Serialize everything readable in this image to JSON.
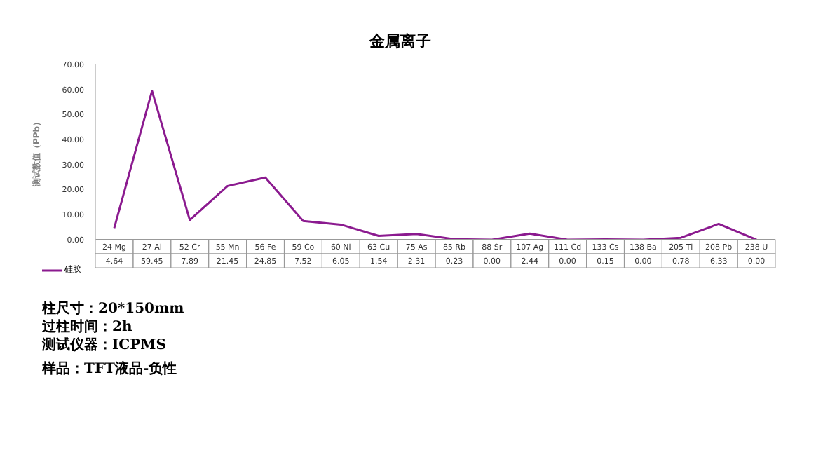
{
  "chart_data": {
    "type": "line",
    "title": "金属离子",
    "ylabel": "测试数值（PPb）",
    "categories": [
      "24 Mg",
      "27 Al",
      "52 Cr",
      "55 Mn",
      "56 Fe",
      "59 Co",
      "60 Ni",
      "63 Cu",
      "75 As",
      "85 Rb",
      "88 Sr",
      "107 Ag",
      "111 Cd",
      "133 Cs",
      "138 Ba",
      "205 Tl",
      "208 Pb",
      "238 U"
    ],
    "series": [
      {
        "name": "硅胶",
        "color": "#8b1a8f",
        "values": [
          4.64,
          59.45,
          7.89,
          21.45,
          24.85,
          7.52,
          6.05,
          1.54,
          2.31,
          0.23,
          0.0,
          2.44,
          0.0,
          0.15,
          0.0,
          0.78,
          6.33,
          0.0
        ],
        "value_labels": [
          "4.64",
          "59.45",
          "7.89",
          "21.45",
          "24.85",
          "7.52",
          "6.05",
          "1.54",
          "2.31",
          "0.23",
          "0.00",
          "2.44",
          "0.00",
          "0.15",
          "0.00",
          "0.78",
          "6.33",
          "0.00"
        ]
      }
    ],
    "ylim": [
      0,
      70
    ],
    "yticks": [
      {
        "value": 0,
        "label": "0.00"
      },
      {
        "value": 10,
        "label": "10.00"
      },
      {
        "value": 20,
        "label": "20.00"
      },
      {
        "value": 30,
        "label": "30.00"
      },
      {
        "value": 40,
        "label": "40.00"
      },
      {
        "value": 50,
        "label": "50.00"
      },
      {
        "value": 60,
        "label": "60.00"
      },
      {
        "value": 70,
        "label": "70.00"
      }
    ],
    "grid": false,
    "legend": "bottom left",
    "marker": "none",
    "line_style": "solid",
    "annotations": [
      "柱尺寸：20*150mm",
      "过柱时间：2h",
      "测试仪器：ICPMS",
      "样品：TFT液品-负性"
    ]
  }
}
